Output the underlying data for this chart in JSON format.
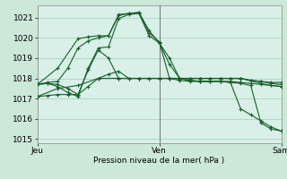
{
  "bg_color": "#cce8d8",
  "plot_bg_color": "#d8f0e8",
  "grid_color": "#aaccbb",
  "line_color": "#1a5c2a",
  "marker_color": "#1a5c2a",
  "xlabel": "Pression niveau de la mer( hPa )",
  "ylim": [
    1014.8,
    1021.6
  ],
  "yticks": [
    1015,
    1016,
    1017,
    1018,
    1019,
    1020,
    1021
  ],
  "xtick_labels": [
    "Jeu",
    "Ven",
    "Sam"
  ],
  "xtick_positions": [
    0,
    24,
    48
  ],
  "vline_x": 24,
  "lines": [
    [
      0,
      1017.7,
      2,
      1017.8,
      4,
      1017.85,
      6,
      1018.5,
      8,
      1019.5,
      10,
      1019.85,
      12,
      1020.0,
      14,
      1020.1,
      16,
      1021.15,
      18,
      1021.2,
      20,
      1021.25,
      22,
      1020.35,
      24,
      1019.75,
      26,
      1019.0,
      28,
      1018.0,
      30,
      1017.9,
      32,
      1017.85,
      34,
      1017.85,
      36,
      1017.85,
      38,
      1017.85,
      40,
      1017.8,
      42,
      1017.75,
      44,
      1017.7,
      46,
      1017.65,
      48,
      1017.6
    ],
    [
      0,
      1017.7,
      4,
      1018.5,
      8,
      1019.95,
      10,
      1020.05,
      12,
      1020.1,
      14,
      1020.1,
      16,
      1021.1,
      18,
      1021.2,
      20,
      1021.25,
      22,
      1020.25,
      24,
      1019.8,
      26,
      1018.0,
      28,
      1017.9,
      30,
      1017.85,
      32,
      1017.85,
      34,
      1017.85,
      36,
      1017.85,
      38,
      1017.8,
      40,
      1017.75,
      42,
      1017.65,
      44,
      1015.8,
      46,
      1015.5,
      48,
      1015.4
    ],
    [
      0,
      1017.7,
      2,
      1017.75,
      4,
      1017.6,
      6,
      1017.3,
      8,
      1017.1,
      10,
      1018.5,
      12,
      1019.5,
      14,
      1019.55,
      16,
      1020.95,
      18,
      1021.15,
      20,
      1021.2,
      22,
      1020.1,
      24,
      1019.75,
      26,
      1018.7,
      28,
      1018.0,
      30,
      1017.9,
      32,
      1017.85,
      34,
      1017.85,
      36,
      1017.85,
      38,
      1017.8,
      40,
      1016.5,
      42,
      1016.2,
      44,
      1015.9,
      46,
      1015.6,
      48,
      1015.4
    ],
    [
      0,
      1017.7,
      2,
      1017.75,
      4,
      1017.7,
      6,
      1017.5,
      8,
      1017.2,
      10,
      1018.4,
      12,
      1019.4,
      14,
      1019.0,
      16,
      1018.0,
      18,
      1018.0,
      20,
      1018.0,
      22,
      1018.0,
      24,
      1018.0,
      26,
      1018.0,
      28,
      1018.0,
      30,
      1018.0,
      32,
      1018.0,
      34,
      1018.0,
      36,
      1018.0,
      38,
      1018.0,
      40,
      1018.0,
      42,
      1017.9,
      44,
      1017.85,
      46,
      1017.8,
      48,
      1017.8
    ],
    [
      0,
      1017.1,
      2,
      1017.15,
      4,
      1017.2,
      6,
      1017.2,
      8,
      1017.2,
      10,
      1017.6,
      12,
      1018.0,
      14,
      1018.2,
      16,
      1018.35,
      18,
      1018.0,
      20,
      1018.0,
      22,
      1018.0,
      24,
      1018.0,
      26,
      1018.0,
      28,
      1018.0,
      30,
      1018.0,
      32,
      1018.0,
      34,
      1018.0,
      36,
      1018.0,
      38,
      1018.0,
      40,
      1018.0,
      42,
      1017.9,
      44,
      1017.85,
      46,
      1017.75,
      48,
      1017.7
    ],
    [
      0,
      1017.1,
      4,
      1017.5,
      8,
      1017.65,
      12,
      1018.0,
      16,
      1018.0,
      20,
      1018.0,
      24,
      1018.0,
      28,
      1018.0,
      32,
      1018.0,
      36,
      1018.0,
      40,
      1018.0,
      44,
      1017.75,
      46,
      1017.65,
      48,
      1017.6
    ]
  ]
}
